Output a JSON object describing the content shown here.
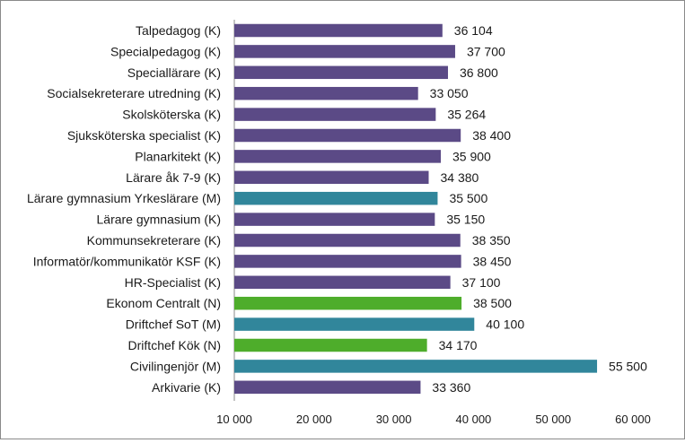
{
  "chart_data": {
    "type": "bar",
    "orientation": "horizontal",
    "xlim": [
      10000,
      60000
    ],
    "xticks": [
      10000,
      20000,
      30000,
      40000,
      50000,
      60000
    ],
    "xtick_labels": [
      "10 000",
      "20 000",
      "30 000",
      "40 000",
      "50 000",
      "60 000"
    ],
    "grid": false,
    "colors": {
      "K": "#5b4a86",
      "M": "#31869b",
      "N": "#4ead2b"
    },
    "categories": [
      "Talpedagog (K)",
      "Specialpedagog (K)",
      "Speciallärare (K)",
      "Socialsekreterare utredning (K)",
      "Skolsköterska (K)",
      "Sjuksköterska specialist (K)",
      "Planarkitekt (K)",
      "Lärare åk 7-9 (K)",
      "Lärare gymnasium Yrkeslärare (M)",
      "Lärare gymnasium (K)",
      "Kommunsekreterare (K)",
      "Informatör/kommunikatör KSF (K)",
      "HR-Specialist (K)",
      "Ekonom Centralt (N)",
      "Driftchef SoT (M)",
      "Driftchef Kök (N)",
      "Civilingenjör (M)",
      "Arkivarie (K)"
    ],
    "values": [
      36104,
      37700,
      36800,
      33050,
      35264,
      38400,
      35900,
      34380,
      35500,
      35150,
      38350,
      38450,
      37100,
      38500,
      40100,
      34170,
      55500,
      33360
    ],
    "value_labels": [
      "36 104",
      "37 700",
      "36 800",
      "33 050",
      "35 264",
      "38 400",
      "35 900",
      "34 380",
      "35 500",
      "35 150",
      "38 350",
      "38 450",
      "37 100",
      "38 500",
      "40 100",
      "34 170",
      "55 500",
      "33 360"
    ],
    "groups": [
      "K",
      "K",
      "K",
      "K",
      "K",
      "K",
      "K",
      "K",
      "M",
      "K",
      "K",
      "K",
      "K",
      "N",
      "M",
      "N",
      "M",
      "K"
    ]
  }
}
